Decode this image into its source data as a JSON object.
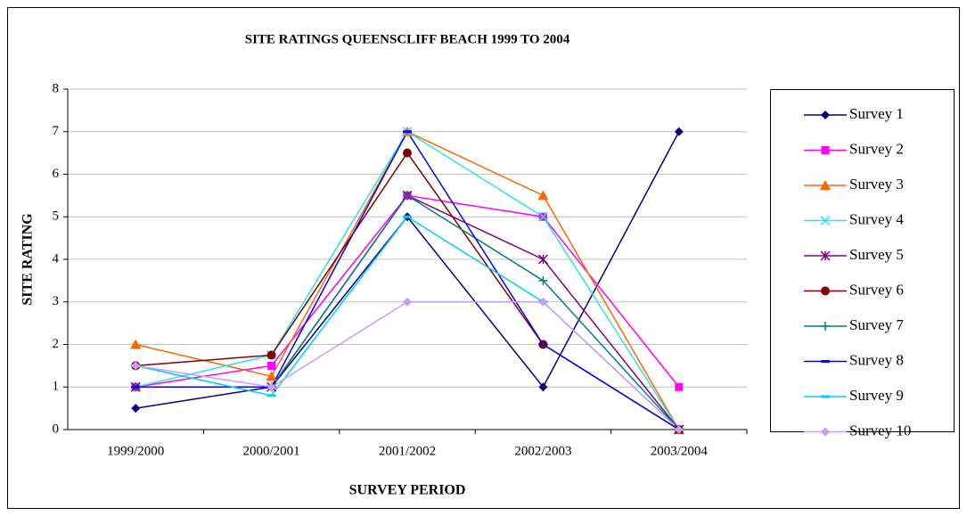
{
  "chart_data": {
    "type": "line",
    "title": "SITE RATINGS QUEENSCLIFF BEACH 1999 TO 2004",
    "x_label": "SURVEY PERIOD",
    "y_label": "SITE RATING",
    "categories": [
      "1999/2000",
      "2000/2001",
      "2001/2002",
      "2002/2003",
      "2003/2004"
    ],
    "ylim": [
      0,
      8
    ],
    "yticks": [
      0,
      1,
      2,
      3,
      4,
      5,
      6,
      7,
      8
    ],
    "grid": true,
    "legend": "right",
    "series": [
      {
        "name": "Survey 1",
        "color": "#000080",
        "marker": "diamond",
        "values": [
          0.5,
          1,
          5,
          1,
          7
        ]
      },
      {
        "name": "Survey 2",
        "color": "#FF00FF",
        "marker": "square",
        "values": [
          1,
          1.5,
          5.5,
          5,
          1
        ]
      },
      {
        "name": "Survey 3",
        "color": "#FF6600",
        "marker": "triangle",
        "values": [
          2,
          1.25,
          7,
          5.5,
          0
        ]
      },
      {
        "name": "Survey 4",
        "color": "#33E0E0",
        "marker": "x",
        "values": [
          1,
          1.75,
          7,
          5,
          0
        ]
      },
      {
        "name": "Survey 5",
        "color": "#800080",
        "marker": "asterisk",
        "values": [
          1,
          1,
          5.5,
          4,
          0
        ]
      },
      {
        "name": "Survey 6",
        "color": "#800000",
        "marker": "circle",
        "values": [
          1.5,
          1.75,
          6.5,
          2,
          0
        ]
      },
      {
        "name": "Survey 7",
        "color": "#008080",
        "marker": "plus",
        "values": [
          1,
          1,
          5.5,
          3.5,
          0
        ]
      },
      {
        "name": "Survey 8",
        "color": "#0000FF",
        "marker": "dash",
        "values": [
          1,
          1,
          7,
          2,
          0
        ]
      },
      {
        "name": "Survey 9",
        "color": "#00CCFF",
        "marker": "dash",
        "values": [
          1.5,
          0.8,
          5,
          3,
          0
        ]
      },
      {
        "name": "Survey 10",
        "color": "#CC99FF",
        "marker": "diamond",
        "values": [
          1.5,
          1,
          3,
          3,
          0
        ]
      }
    ]
  }
}
